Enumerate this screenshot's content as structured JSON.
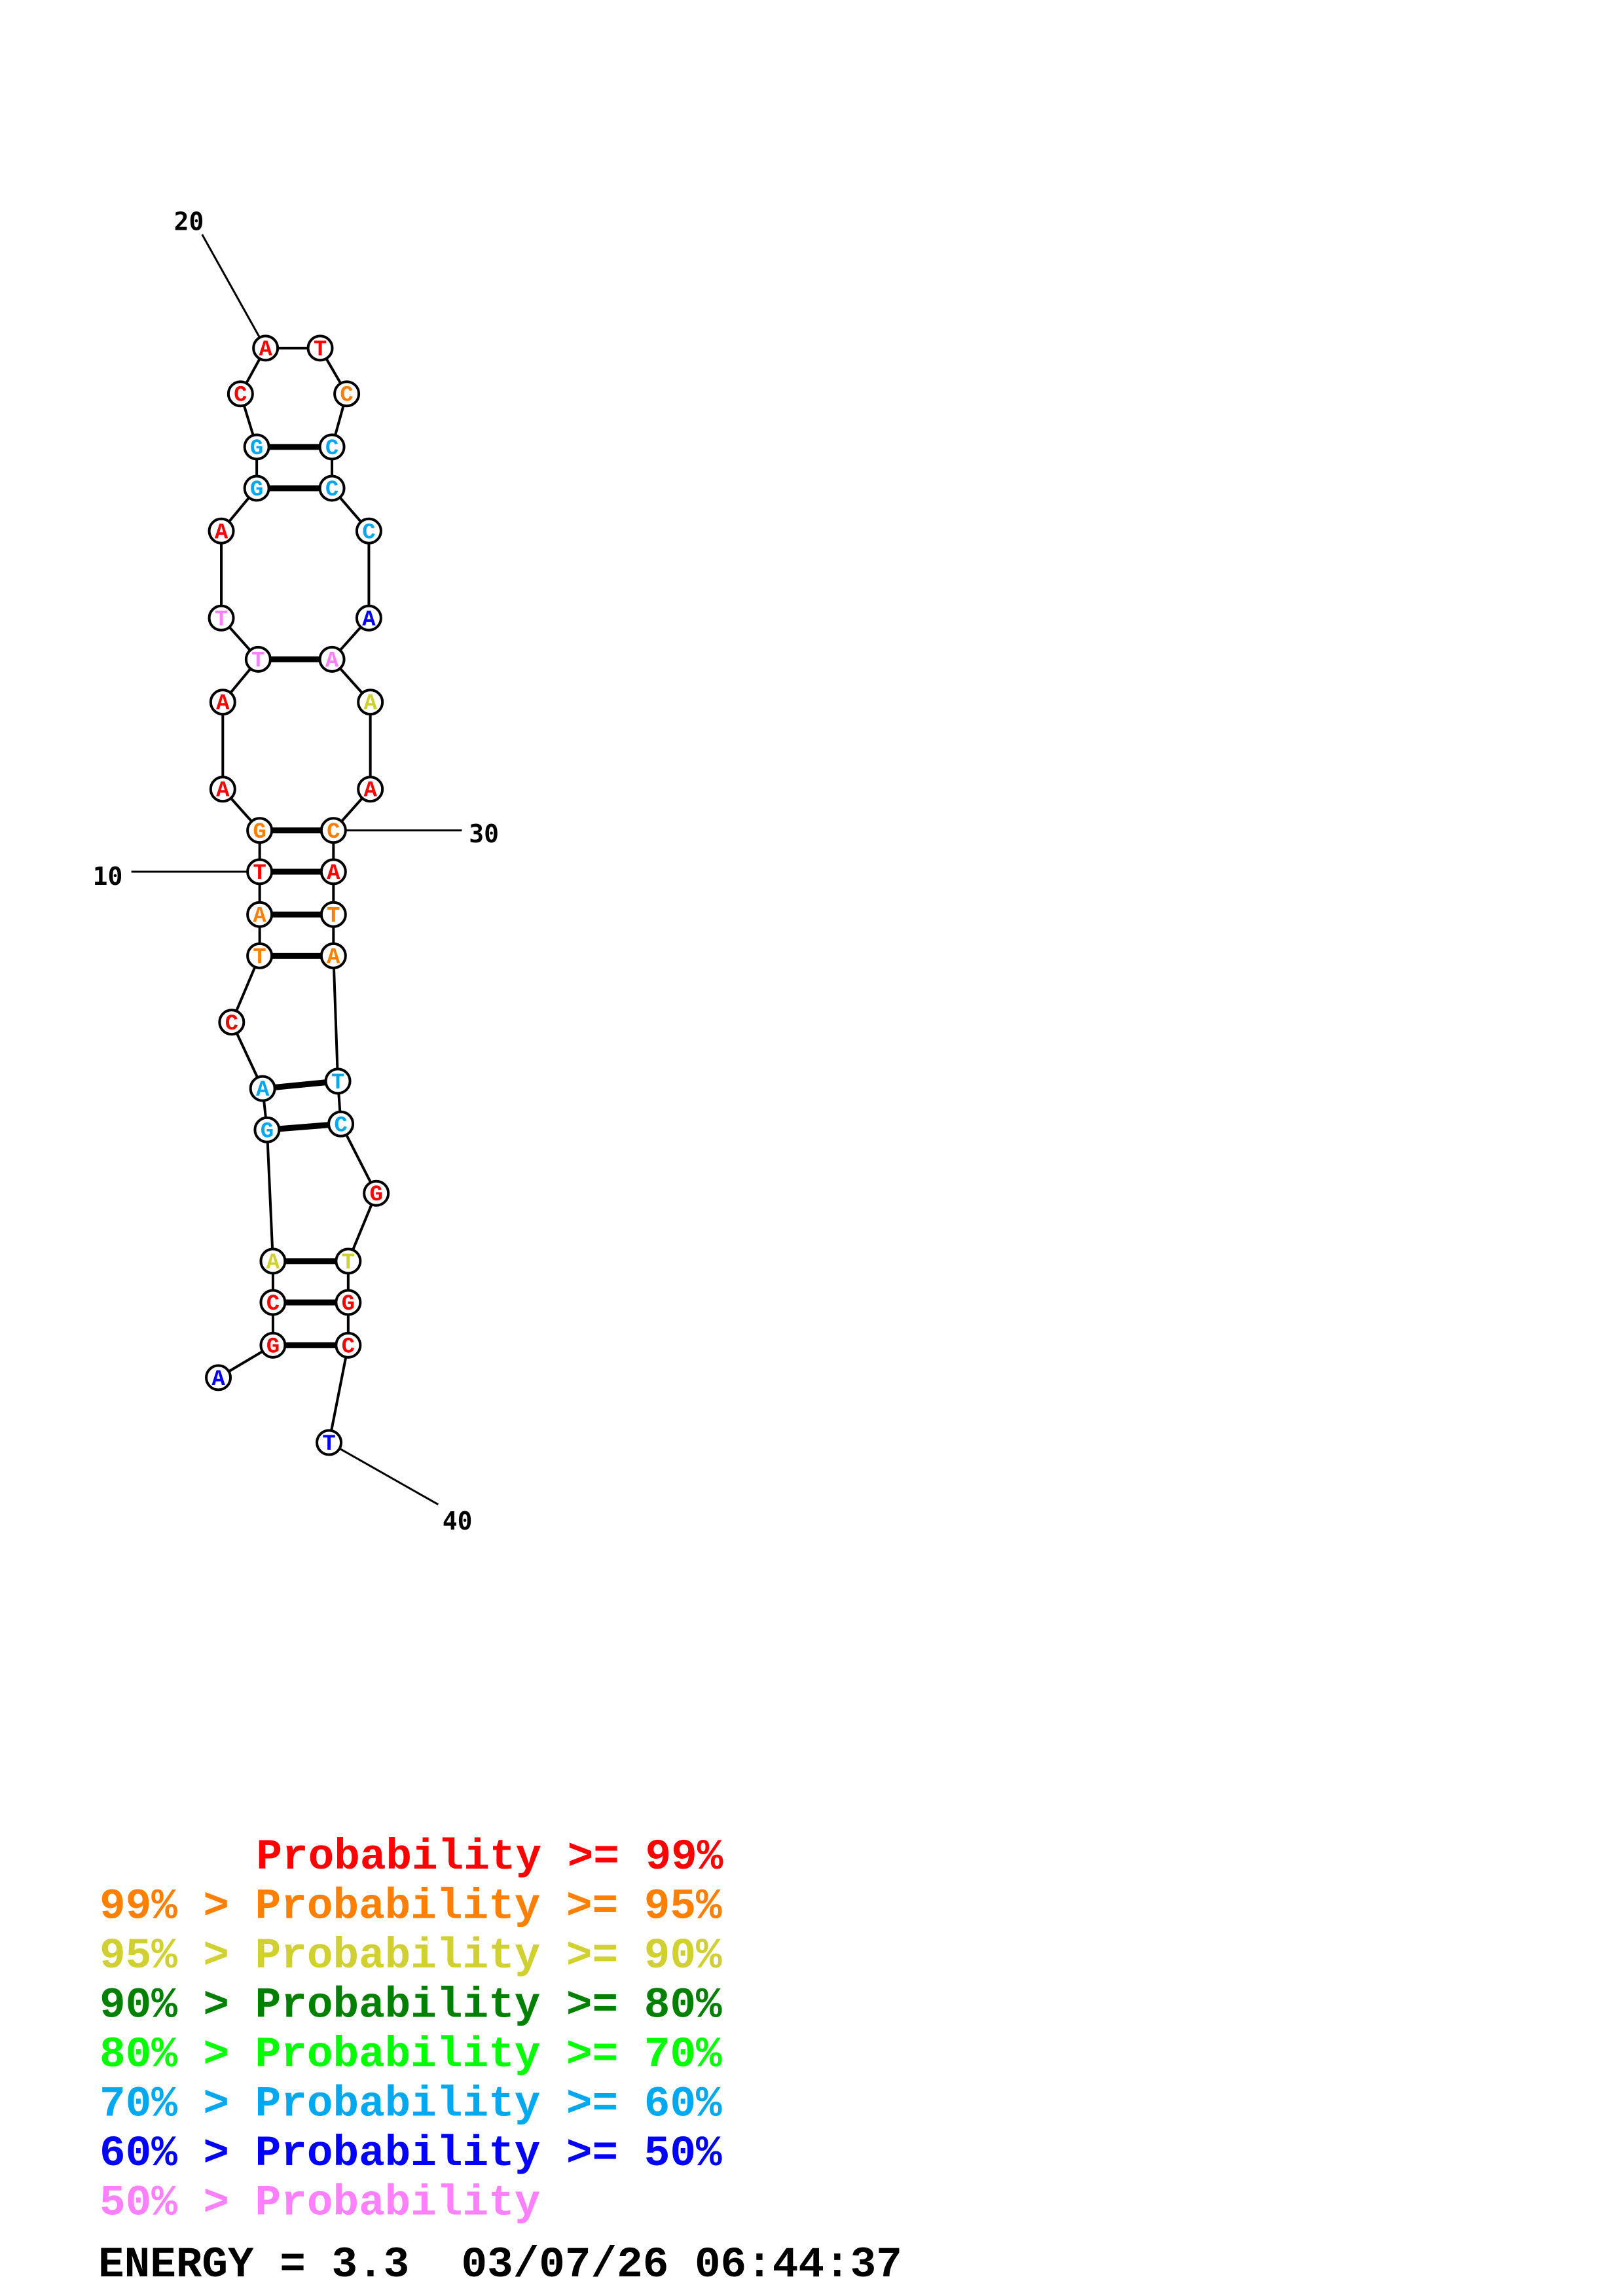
{
  "diagram": {
    "type": "rna-secondary-structure",
    "sequence": [
      "A",
      "G",
      "C",
      "A",
      "G",
      "A",
      "C",
      "T",
      "A",
      "T",
      "G",
      "A",
      "A",
      "T",
      "T",
      "A",
      "G",
      "G",
      "C",
      "A",
      "T",
      "C",
      "C",
      "C",
      "C",
      "A",
      "A",
      "A",
      "A",
      "C",
      "A",
      "T",
      "A",
      "T",
      "C",
      "G",
      "T",
      "G",
      "C",
      "T"
    ],
    "probability_class": [
      6,
      0,
      0,
      2,
      5,
      5,
      0,
      1,
      1,
      0,
      1,
      0,
      0,
      7,
      7,
      0,
      5,
      5,
      0,
      0,
      0,
      1,
      5,
      5,
      5,
      6,
      7,
      2,
      0,
      1,
      0,
      1,
      1,
      5,
      5,
      0,
      2,
      0,
      0,
      6
    ],
    "pairs": [
      [
        2,
        39
      ],
      [
        3,
        38
      ],
      [
        4,
        37
      ],
      [
        5,
        35
      ],
      [
        6,
        34
      ],
      [
        8,
        33
      ],
      [
        9,
        32
      ],
      [
        10,
        31
      ],
      [
        11,
        30
      ],
      [
        14,
        27
      ],
      [
        17,
        24
      ],
      [
        18,
        23
      ]
    ],
    "position_labels": [
      "10",
      "20",
      "30",
      "40"
    ]
  },
  "legend": {
    "rows": [
      {
        "text": "Probability >= 99%",
        "color": "#ff0000"
      },
      {
        "text": "99% > Probability >= 95%",
        "color": "#ff8000"
      },
      {
        "text": "95% > Probability >= 90%",
        "color": "#d0d030"
      },
      {
        "text": "90% > Probability >= 80%",
        "color": "#008000"
      },
      {
        "text": "80% > Probability >= 70%",
        "color": "#00ff00"
      },
      {
        "text": "70% > Probability >= 60%",
        "color": "#00a8f0"
      },
      {
        "text": "60% > Probability >= 50%",
        "color": "#0000ff"
      },
      {
        "text": "50% > Probability",
        "color": "#ff80ff"
      }
    ],
    "energy_line": "ENERGY = 3.3  03/07/26 06:44:37"
  }
}
